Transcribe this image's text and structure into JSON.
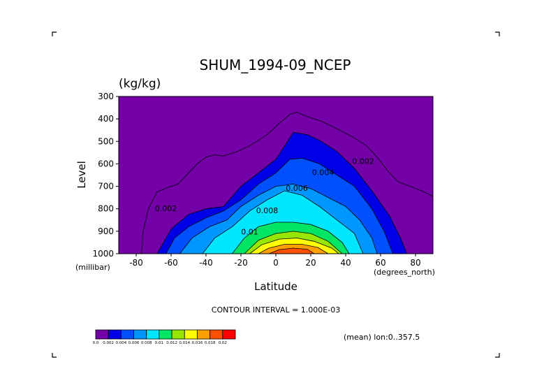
{
  "chart_data": {
    "type": "contour",
    "title": "SHUM_1994-09_NCEP",
    "units_label": "(kg/kg)",
    "xlabel": "Latitude",
    "ylabel": "Level",
    "x_units_label": "(degrees_north)",
    "y_units_label": "(millibar)",
    "xlim": [
      -90,
      90
    ],
    "ylim": [
      1000,
      300
    ],
    "x_ticks": [
      {
        "value": -80,
        "label": "-80"
      },
      {
        "value": -60,
        "label": "-60"
      },
      {
        "value": -40,
        "label": "-40"
      },
      {
        "value": -20,
        "label": "-20"
      },
      {
        "value": 0,
        "label": "0"
      },
      {
        "value": 20,
        "label": "20"
      },
      {
        "value": 40,
        "label": "40"
      },
      {
        "value": 60,
        "label": "60"
      },
      {
        "value": 80,
        "label": "80"
      }
    ],
    "y_ticks": [
      {
        "value": 300,
        "label": "300"
      },
      {
        "value": 400,
        "label": "400"
      },
      {
        "value": 500,
        "label": "500"
      },
      {
        "value": 600,
        "label": "600"
      },
      {
        "value": 700,
        "label": "700"
      },
      {
        "value": 800,
        "label": "800"
      },
      {
        "value": 900,
        "label": "900"
      },
      {
        "value": 1000,
        "label": "1000"
      }
    ],
    "contour_interval_label": "CONTOUR INTERVAL = 1.000E-03",
    "info_label": "(mean) lon:0..357.5",
    "contour_labels": [
      {
        "lat": -63,
        "level": 810,
        "label": "0.002"
      },
      {
        "lat": 50,
        "level": 600,
        "label": "0.002"
      },
      {
        "lat": 27,
        "level": 650,
        "label": "0.004"
      },
      {
        "lat": 12,
        "level": 720,
        "label": "0.006"
      },
      {
        "lat": -5,
        "level": 820,
        "label": "0.008"
      },
      {
        "lat": -15,
        "level": 915,
        "label": "0.01"
      }
    ],
    "colorbar": {
      "colors": [
        "#7400a8",
        "#0000e6",
        "#0050ff",
        "#0096ff",
        "#00e6ff",
        "#00e664",
        "#96e600",
        "#ffff00",
        "#ffa000",
        "#ff5000",
        "#ff0000"
      ],
      "labels": [
        "0.0",
        "0.002",
        "0.004",
        "0.006",
        "0.008",
        "0.01",
        "0.012",
        "0.014",
        "0.016",
        "0.018",
        "0.02"
      ]
    },
    "fill_levels": [
      {
        "value": 0.001,
        "color": "#0000e6",
        "boundary": [
          [
            -68,
            1000
          ],
          [
            -65,
            960
          ],
          [
            -60,
            890
          ],
          [
            -50,
            825
          ],
          [
            -40,
            800
          ],
          [
            -30,
            790
          ],
          [
            -20,
            700
          ],
          [
            -10,
            640
          ],
          [
            0,
            580
          ],
          [
            5,
            520
          ],
          [
            10,
            460
          ],
          [
            18,
            470
          ],
          [
            25,
            495
          ],
          [
            35,
            545
          ],
          [
            45,
            620
          ],
          [
            55,
            720
          ],
          [
            65,
            830
          ],
          [
            72,
            940
          ],
          [
            75,
            1000
          ]
        ]
      },
      {
        "value": 0.002,
        "color": "#0050ff",
        "boundary": [
          [
            -63,
            1000
          ],
          [
            -58,
            930
          ],
          [
            -50,
            880
          ],
          [
            -40,
            840
          ],
          [
            -30,
            810
          ],
          [
            -20,
            760
          ],
          [
            -10,
            690
          ],
          [
            0,
            640
          ],
          [
            8,
            580
          ],
          [
            15,
            575
          ],
          [
            25,
            600
          ],
          [
            35,
            650
          ],
          [
            45,
            700
          ],
          [
            55,
            800
          ],
          [
            62,
            900
          ],
          [
            67,
            1000
          ]
        ]
      },
      {
        "value": 0.003,
        "color": "#0096ff",
        "boundary": [
          [
            -55,
            1000
          ],
          [
            -48,
            930
          ],
          [
            -38,
            880
          ],
          [
            -28,
            850
          ],
          [
            -20,
            790
          ],
          [
            -10,
            740
          ],
          [
            0,
            700
          ],
          [
            10,
            690
          ],
          [
            20,
            710
          ],
          [
            30,
            750
          ],
          [
            40,
            790
          ],
          [
            48,
            850
          ],
          [
            55,
            930
          ],
          [
            58,
            1000
          ]
        ]
      },
      {
        "value": 0.004,
        "color": "#00e6ff",
        "boundary": [
          [
            -42,
            1000
          ],
          [
            -35,
            930
          ],
          [
            -25,
            880
          ],
          [
            -15,
            810
          ],
          [
            -5,
            760
          ],
          [
            5,
            720
          ],
          [
            15,
            740
          ],
          [
            25,
            790
          ],
          [
            35,
            850
          ],
          [
            45,
            910
          ],
          [
            50,
            1000
          ]
        ]
      },
      {
        "value": 0.005,
        "color": "#00e664",
        "boundary": [
          [
            -25,
            1000
          ],
          [
            -18,
            930
          ],
          [
            -10,
            880
          ],
          [
            0,
            860
          ],
          [
            10,
            860
          ],
          [
            20,
            870
          ],
          [
            30,
            900
          ],
          [
            38,
            950
          ],
          [
            42,
            1000
          ]
        ]
      },
      {
        "value": 0.006,
        "color": "#96e600",
        "boundary": [
          [
            -18,
            1000
          ],
          [
            -10,
            940
          ],
          [
            0,
            910
          ],
          [
            10,
            900
          ],
          [
            20,
            910
          ],
          [
            30,
            945
          ],
          [
            38,
            1000
          ]
        ]
      },
      {
        "value": 0.007,
        "color": "#ffff00",
        "boundary": [
          [
            -15,
            1000
          ],
          [
            -8,
            960
          ],
          [
            2,
            935
          ],
          [
            12,
            930
          ],
          [
            22,
            945
          ],
          [
            32,
            975
          ],
          [
            36,
            1000
          ]
        ]
      },
      {
        "value": 0.008,
        "color": "#ffa000",
        "boundary": [
          [
            -10,
            1000
          ],
          [
            -4,
            975
          ],
          [
            5,
            958
          ],
          [
            15,
            958
          ],
          [
            24,
            972
          ],
          [
            30,
            1000
          ]
        ]
      },
      {
        "value": 0.009,
        "color": "#ff5000",
        "boundary": [
          [
            -4,
            1000
          ],
          [
            2,
            982
          ],
          [
            10,
            975
          ],
          [
            18,
            980
          ],
          [
            22,
            1000
          ]
        ]
      }
    ],
    "contour_lines": [
      {
        "value": 0.0005,
        "boundary": [
          [
            -77,
            1000
          ],
          [
            -76,
            900
          ],
          [
            -73,
            800
          ],
          [
            -68,
            725
          ],
          [
            -62,
            705
          ],
          [
            -56,
            690
          ],
          [
            -50,
            640
          ],
          [
            -45,
            600
          ],
          [
            -40,
            570
          ],
          [
            -35,
            560
          ],
          [
            -30,
            565
          ],
          [
            -22,
            545
          ],
          [
            -15,
            520
          ],
          [
            -5,
            470
          ],
          [
            2,
            420
          ],
          [
            8,
            380
          ],
          [
            12,
            370
          ],
          [
            18,
            390
          ],
          [
            26,
            410
          ],
          [
            34,
            440
          ],
          [
            44,
            480
          ],
          [
            52,
            520
          ],
          [
            58,
            570
          ],
          [
            64,
            630
          ],
          [
            70,
            680
          ],
          [
            77,
            700
          ],
          [
            85,
            725
          ],
          [
            90,
            745
          ]
        ]
      }
    ]
  }
}
